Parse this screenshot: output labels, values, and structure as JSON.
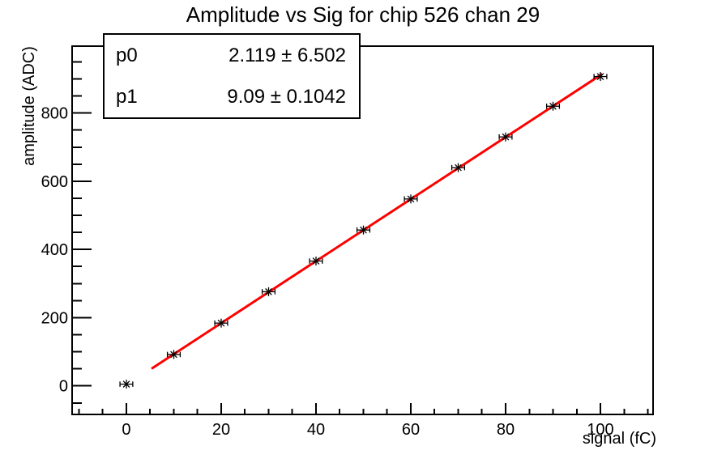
{
  "chart_data": {
    "type": "scatter",
    "title": "Amplitude vs Sig for chip 526 chan 29",
    "xlabel": "signal (fC)",
    "ylabel": "amplitude (ADC)",
    "x": [
      0,
      10,
      20,
      30,
      40,
      50,
      60,
      70,
      80,
      90,
      100
    ],
    "y": [
      5,
      92,
      184,
      276,
      366,
      457,
      548,
      640,
      730,
      820,
      907
    ],
    "x_err": 1.35,
    "xlim": [
      -11.45,
      111.11
    ],
    "ylim": [
      -83.8,
      996.2
    ],
    "x_major_ticks": [
      0,
      20,
      40,
      60,
      80,
      100
    ],
    "x_minor_step": 5,
    "y_major_ticks": [
      0,
      200,
      400,
      600,
      800
    ],
    "y_minor_step": 50,
    "grid": false,
    "legend": null,
    "marker": {
      "shape": "asterisk-with-x-error-bars",
      "color": "#000000"
    },
    "fit": {
      "type": "linear",
      "p0": 2.119,
      "p0_err": 6.502,
      "p1": 9.09,
      "p1_err": 0.1042,
      "draw_range": [
        5.3,
        100.4
      ],
      "color": "#ff0000",
      "line_width": 3
    }
  },
  "stats_box": {
    "rows": [
      {
        "label": "p0",
        "value": "2.119 ± 6.502"
      },
      {
        "label": "p1",
        "value": "9.09 ± 0.1042"
      }
    ]
  },
  "colors": {
    "background": "#ffffff",
    "axis": "#000000",
    "fit_line": "#ff0000"
  }
}
